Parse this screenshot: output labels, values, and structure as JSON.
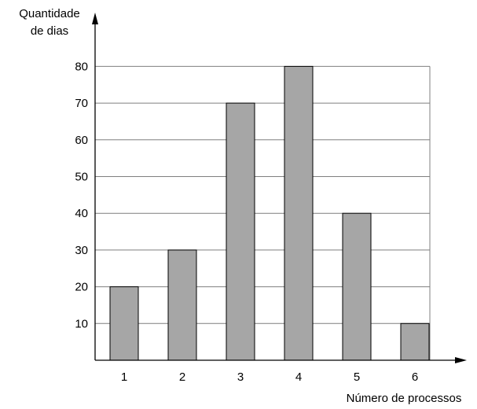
{
  "chart_data": {
    "type": "bar",
    "title": "",
    "ylabel_lines": [
      "Quantidade",
      "de dias"
    ],
    "xlabel": "Número de processos",
    "categories": [
      "1",
      "2",
      "3",
      "4",
      "5",
      "6"
    ],
    "values": [
      20,
      30,
      70,
      80,
      40,
      10
    ],
    "ylim": [
      0,
      90
    ],
    "yticks": [
      10,
      20,
      30,
      40,
      50,
      60,
      70,
      80
    ],
    "grid": true,
    "bar_color": "#a6a6a6",
    "axis_color": "#000000",
    "grid_color": "#7f7f7f"
  }
}
